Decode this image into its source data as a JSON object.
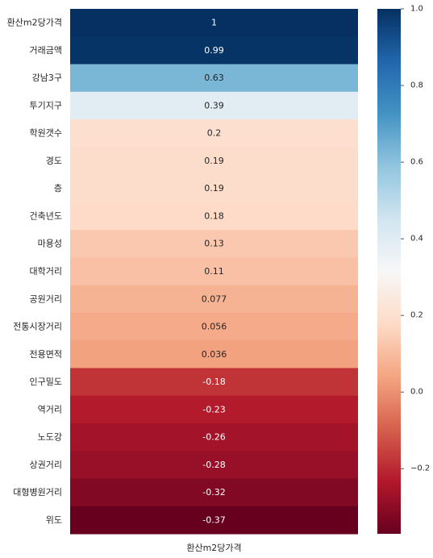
{
  "chart_data": {
    "type": "heatmap",
    "column": "환산m2당가격",
    "rows": [
      "환산m2당가격",
      "거래금액",
      "강남3구",
      "투기지구",
      "학원갯수",
      "경도",
      "층",
      "건축년도",
      "마용성",
      "대학거리",
      "공원거리",
      "전통시장거리",
      "전용면적",
      "인구밀도",
      "역거리",
      "노도강",
      "상권거리",
      "대형병원거리",
      "위도"
    ],
    "values": [
      1,
      0.99,
      0.63,
      0.39,
      0.2,
      0.19,
      0.19,
      0.18,
      0.13,
      0.11,
      0.077,
      0.056,
      0.036,
      -0.18,
      -0.23,
      -0.26,
      -0.28,
      -0.32,
      -0.37
    ],
    "value_labels": [
      "1",
      "0.99",
      "0.63",
      "0.39",
      "0.2",
      "0.19",
      "0.19",
      "0.18",
      "0.13",
      "0.11",
      "0.077",
      "0.056",
      "0.036",
      "-0.18",
      "-0.23",
      "-0.26",
      "-0.28",
      "-0.32",
      "-0.37"
    ],
    "colorscale": "RdBu",
    "colorbar": {
      "range": [
        -0.37,
        1.0
      ],
      "ticks": [
        1.0,
        0.8,
        0.6,
        0.4,
        0.2,
        0.0,
        -0.2
      ],
      "tick_labels": [
        "1.0",
        "0.8",
        "0.6",
        "0.4",
        "0.2",
        "0.0",
        "−0.2"
      ]
    },
    "xlabel": "환산m2당가격"
  }
}
